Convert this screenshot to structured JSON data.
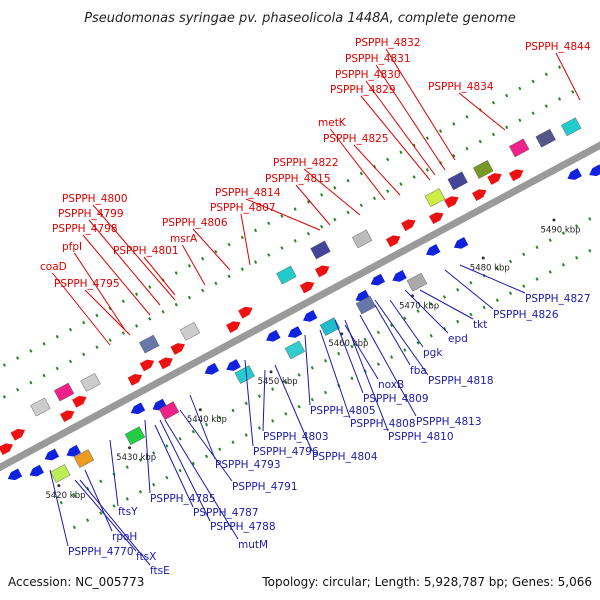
{
  "title": "Pseudomonas syringae pv. phaseolicola 1448A, complete genome",
  "footer": {
    "accession": "Accession: NC_005773",
    "summary": "Topology: circular; Length: 5,928,787 bp; Genes: 5,066"
  },
  "colors": {
    "upper_label": "#dd0000",
    "lower_label": "#1a1aaa",
    "forward_arrow": "#ee1111",
    "reverse_arrow": "#1122dd",
    "backbone": "#9a9a9a",
    "tick": "#228822"
  },
  "scale_ticks": [
    "5420 kbp",
    "5430 kbp",
    "5440 kbp",
    "5450 kbp",
    "5460 kbp",
    "5470 kbp",
    "5480 kbp",
    "5490 kbp"
  ],
  "upper_labels": [
    "PSPPH_4832",
    "PSPPH_4844",
    "PSPPH_4831",
    "PSPPH_4830",
    "PSPPH_4834",
    "PSPPH_4829",
    "metK",
    "PSPPH_4825",
    "PSPPH_4822",
    "PSPPH_4815",
    "PSPPH_4814",
    "PSPPH_4800",
    "PSPPH_4807",
    "PSPPH_4799",
    "PSPPH_4806",
    "PSPPH_4798",
    "msrA",
    "pfpI",
    "PSPPH_4801",
    "coaD",
    "PSPPH_4795"
  ],
  "lower_labels": [
    "PSPPH_4827",
    "PSPPH_4826",
    "tkt",
    "epd",
    "pgk",
    "fba",
    "PSPPH_4818",
    "noxB",
    "PSPPH_4809",
    "PSPPH_4805",
    "PSPPH_4813",
    "PSPPH_4808",
    "PSPPH_4810",
    "PSPPH_4803",
    "PSPPH_4796",
    "PSPPH_4804",
    "PSPPH_4793",
    "PSPPH_4791",
    "PSPPH_4785",
    "PSPPH_4787",
    "PSPPH_4788",
    "mutM",
    "ftsY",
    "rpoH",
    "PSPPH_4770",
    "ftsX",
    "ftsE"
  ]
}
